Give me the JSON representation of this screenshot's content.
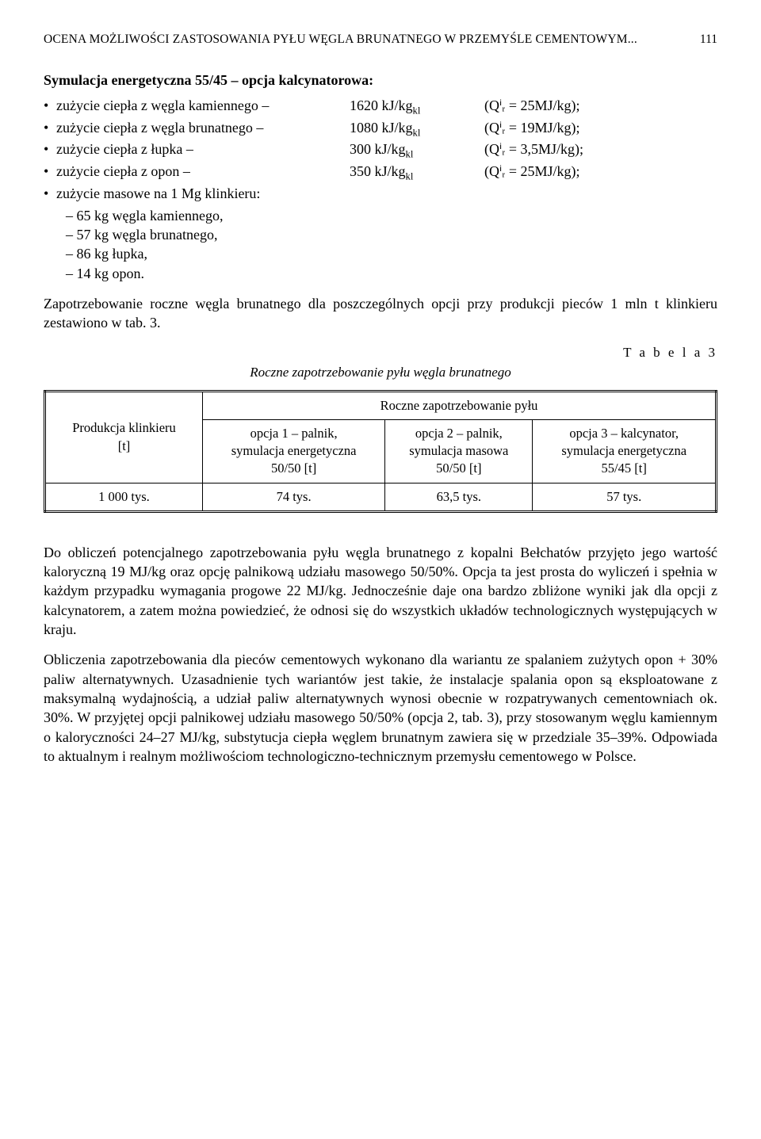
{
  "header": {
    "running_title": "OCENA MOŻLIWOŚCI ZASTOSOWANIA PYŁU WĘGLA BRUNATNEGO W PRZEMYŚLE CEMENTOWYM...",
    "page_number": "111"
  },
  "sim": {
    "title": "Symulacja energetyczna 55/45 – opcja kalcynatorowa:",
    "rows": [
      {
        "label": "zużycie ciepła z węgla kamiennego –",
        "value": "1620 kJ/kg",
        "q": "(Qⁱᵣ = 25MJ/kg);"
      },
      {
        "label": "zużycie ciepła z węgla brunatnego –",
        "value": "1080 kJ/kg",
        "q": "(Qⁱᵣ = 19MJ/kg);"
      },
      {
        "label": "zużycie ciepła z łupka –",
        "value": "300 kJ/kg",
        "q": "(Qⁱᵣ = 3,5MJ/kg);"
      },
      {
        "label": "zużycie ciepła z opon –",
        "value": "350 kJ/kg",
        "q": "(Qⁱᵣ = 25MJ/kg);"
      }
    ],
    "mass_line": "zużycie masowe na 1 Mg klinkieru:",
    "mass_items": [
      "65 kg węgla kamiennego,",
      "57 kg węgla brunatnego,",
      "86 kg łupka,",
      "14 kg opon."
    ]
  },
  "para1": "Zapotrzebowanie roczne węgla brunatnego dla poszczególnych opcji przy produkcji pieców 1 mln t klinkieru zestawiono w tab. 3.",
  "table3": {
    "label": "T a b e l a  3",
    "caption": "Roczne zapotrzebowanie pyłu węgla brunatnego",
    "rowhdr": "Produkcja klinkieru\n[t]",
    "super_header": "Roczne zapotrzebowanie pyłu",
    "columns": [
      "opcja 1 – palnik,\nsymulacja energetyczna\n50/50 [t]",
      "opcja 2 – palnik,\nsymulacja masowa\n50/50 [t]",
      "opcja 3 – kalcynator,\nsymulacja energetyczna\n55/45 [t]"
    ],
    "rows": [
      [
        "1 000 tys.",
        "74 tys.",
        "63,5 tys.",
        "57 tys."
      ]
    ]
  },
  "para2": "Do obliczeń potencjalnego zapotrzebowania pyłu węgla brunatnego z kopalni Bełchatów przyjęto jego wartość kaloryczną 19 MJ/kg oraz opcję palnikową udziału masowego 50/50%. Opcja ta jest prosta do wyliczeń i spełnia w każdym przypadku wymagania progowe 22 MJ/kg. Jednocześnie daje ona bardzo zbliżone wyniki jak dla opcji z kalcynatorem, a zatem można powiedzieć, że odnosi się do wszystkich układów technologicznych występujących w kraju.",
  "para3": "Obliczenia zapotrzebowania dla pieców cementowych wykonano dla wariantu ze spalaniem zużytych opon + 30% paliw alternatywnych. Uzasadnienie tych wariantów jest takie, że instalacje spalania opon są eksploatowane z maksymalną wydajnością, a udział paliw alternatywnych wynosi obecnie w rozpatrywanych cementowniach ok. 30%. W przyjętej opcji palnikowej udziału masowego 50/50% (opcja 2, tab. 3), przy stosowanym węglu kamiennym o kaloryczności 24–27 MJ/kg, substytucja ciepła węglem brunatnym zawiera się w przedziale 35–39%. Odpowiada to aktualnym i realnym możliwościom technologiczno-technicznym przemysłu cementowego w Polsce."
}
